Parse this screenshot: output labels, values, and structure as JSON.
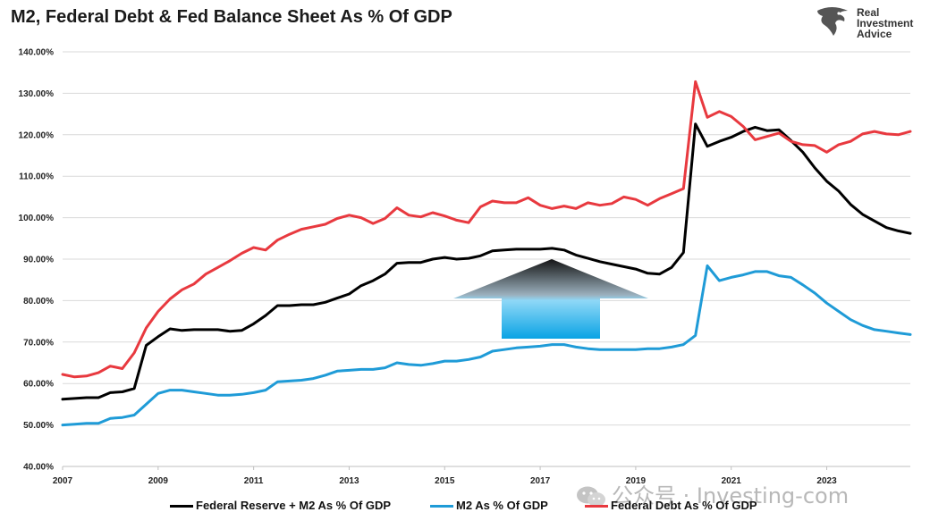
{
  "title": "M2, Federal Debt & Fed Balance Sheet As % Of GDP",
  "brand": {
    "line1": "Real",
    "line2": "Investment",
    "line3": "Advice",
    "icon": "eagle-logo-icon"
  },
  "watermark": {
    "text": "公众号 · Investing-com",
    "icon": "wechat-icon"
  },
  "colors": {
    "fed_plus_m2": "#000000",
    "m2": "#1f9bd7",
    "federal_debt": "#e8393f",
    "arrow_top": "#1a1a1a",
    "arrow_bottom": "#0aa6e6"
  },
  "chart_data": {
    "type": "line",
    "title": "M2, Federal Debt & Fed Balance Sheet As % Of GDP",
    "xlabel": "",
    "ylabel": "",
    "xlim": [
      2007,
      2024.75
    ],
    "ylim": [
      40,
      140
    ],
    "y_ticks": [
      "40.00%",
      "50.00%",
      "60.00%",
      "70.00%",
      "80.00%",
      "90.00%",
      "100.00%",
      "110.00%",
      "120.00%",
      "130.00%",
      "140.00%"
    ],
    "x_ticks": [
      "2007",
      "2009",
      "2011",
      "2013",
      "2015",
      "2017",
      "2019",
      "2021",
      "2023"
    ],
    "grid": "horizontal",
    "legend_position": "bottom",
    "annotation": "upward gradient arrow",
    "x": [
      2007.0,
      2007.25,
      2007.5,
      2007.75,
      2008.0,
      2008.25,
      2008.5,
      2008.75,
      2009.0,
      2009.25,
      2009.5,
      2009.75,
      2010.0,
      2010.25,
      2010.5,
      2010.75,
      2011.0,
      2011.25,
      2011.5,
      2011.75,
      2012.0,
      2012.25,
      2012.5,
      2012.75,
      2013.0,
      2013.25,
      2013.5,
      2013.75,
      2014.0,
      2014.25,
      2014.5,
      2014.75,
      2015.0,
      2015.25,
      2015.5,
      2015.75,
      2016.0,
      2016.25,
      2016.5,
      2016.75,
      2017.0,
      2017.25,
      2017.5,
      2017.75,
      2018.0,
      2018.25,
      2018.5,
      2018.75,
      2019.0,
      2019.25,
      2019.5,
      2019.75,
      2020.0,
      2020.25,
      2020.5,
      2020.75,
      2021.0,
      2021.25,
      2021.5,
      2021.75,
      2022.0,
      2022.25,
      2022.5,
      2022.75,
      2023.0,
      2023.25,
      2023.5,
      2023.75,
      2024.0,
      2024.25,
      2024.5,
      2024.75
    ],
    "series": [
      {
        "name": "Federal Reserve + M2 As % Of GDP",
        "color": "#000000",
        "values": [
          56.2,
          56.4,
          56.6,
          56.6,
          57.8,
          58.0,
          58.8,
          69.2,
          71.3,
          73.2,
          72.8,
          73.0,
          73.0,
          73.0,
          72.6,
          72.8,
          74.4,
          76.4,
          78.8,
          78.8,
          79.0,
          79.0,
          79.6,
          80.6,
          81.6,
          83.6,
          84.8,
          86.4,
          89.0,
          89.2,
          89.2,
          90.0,
          90.4,
          90.0,
          90.2,
          90.8,
          92.0,
          92.2,
          92.4,
          92.4,
          92.4,
          92.6,
          92.2,
          91.0,
          90.2,
          89.4,
          88.8,
          88.2,
          87.6,
          86.6,
          86.4,
          88.0,
          91.6,
          122.6,
          117.2,
          118.4,
          119.4,
          120.8,
          121.8,
          121.0,
          121.2,
          118.6,
          115.8,
          112.0,
          108.8,
          106.4,
          103.2,
          100.8,
          99.2,
          97.6,
          96.8,
          96.2
        ]
      },
      {
        "name": "M2 As % Of GDP",
        "color": "#1f9bd7",
        "values": [
          50.0,
          50.2,
          50.4,
          50.4,
          51.6,
          51.8,
          52.4,
          55.0,
          57.6,
          58.4,
          58.4,
          58.0,
          57.6,
          57.2,
          57.2,
          57.4,
          57.8,
          58.4,
          60.4,
          60.6,
          60.8,
          61.2,
          62.0,
          63.0,
          63.2,
          63.4,
          63.4,
          63.8,
          65.0,
          64.6,
          64.4,
          64.8,
          65.4,
          65.4,
          65.8,
          66.4,
          67.8,
          68.2,
          68.6,
          68.8,
          69.0,
          69.4,
          69.4,
          68.8,
          68.4,
          68.2,
          68.2,
          68.2,
          68.2,
          68.4,
          68.4,
          68.8,
          69.4,
          71.6,
          88.4,
          84.8,
          85.6,
          86.2,
          87.0,
          87.0,
          86.0,
          85.6,
          83.8,
          81.8,
          79.4,
          77.4,
          75.4,
          74.0,
          73.0,
          72.6,
          72.2,
          71.8
        ]
      },
      {
        "name": "Federal Debt As % Of GDP",
        "color": "#e8393f",
        "values": [
          62.2,
          61.6,
          61.8,
          62.6,
          64.2,
          63.6,
          67.4,
          73.4,
          77.4,
          80.4,
          82.6,
          84.0,
          86.4,
          88.0,
          89.6,
          91.4,
          92.8,
          92.2,
          94.6,
          96.0,
          97.2,
          97.8,
          98.4,
          99.8,
          100.6,
          100.0,
          98.6,
          99.8,
          102.4,
          100.6,
          100.2,
          101.2,
          100.4,
          99.4,
          98.8,
          102.6,
          104.0,
          103.6,
          103.6,
          104.8,
          103.0,
          102.2,
          102.8,
          102.2,
          103.6,
          103.0,
          103.4,
          105.0,
          104.4,
          103.0,
          104.6,
          105.8,
          107.0,
          132.8,
          124.2,
          125.6,
          124.4,
          122.0,
          118.8,
          119.6,
          120.4,
          118.4,
          117.6,
          117.4,
          115.8,
          117.6,
          118.4,
          120.2,
          120.8,
          120.2,
          120.0,
          120.8
        ]
      }
    ]
  },
  "legend": [
    {
      "label": "Federal Reserve + M2 As % Of GDP",
      "color": "#000000"
    },
    {
      "label": "M2 As % Of GDP",
      "color": "#1f9bd7"
    },
    {
      "label": "Federal Debt As % Of GDP",
      "color": "#e8393f"
    }
  ]
}
